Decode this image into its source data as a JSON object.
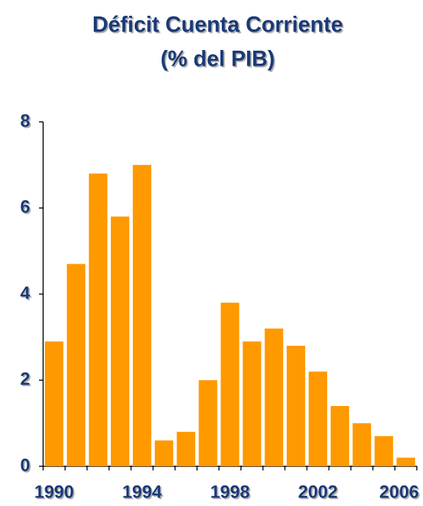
{
  "chart_data": {
    "type": "bar",
    "title": "Déficit Cuenta Corriente",
    "subtitle": "(% del PIB)",
    "categories": [
      "1990",
      null,
      null,
      null,
      "1994",
      null,
      null,
      null,
      "1998",
      null,
      null,
      null,
      "2002",
      null,
      null,
      null,
      "2006"
    ],
    "values": [
      2.9,
      4.7,
      6.8,
      5.8,
      7.0,
      0.6,
      0.8,
      2.0,
      3.8,
      2.9,
      3.2,
      2.8,
      2.2,
      1.4,
      1.0,
      0.7,
      0.2
    ],
    "color": "#ff9900",
    "ylim": [
      0,
      8
    ],
    "yticks": [
      0,
      2,
      4,
      6,
      8
    ],
    "grid": false
  }
}
